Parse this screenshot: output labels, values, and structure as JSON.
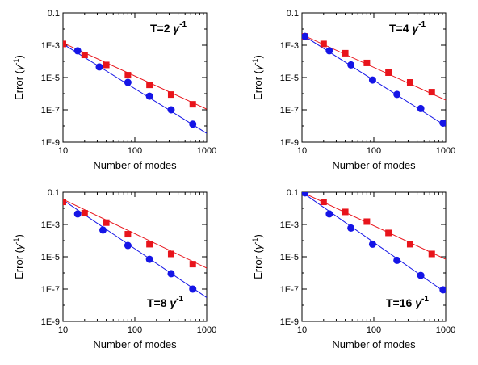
{
  "chart_data": [
    {
      "type": "scatter",
      "title": "",
      "label_main": "T=2 ",
      "label_gamma": "γ",
      "label_sup": "-1",
      "xlabel": "Number of modes",
      "ylabel_main": "Error (",
      "ylabel_gamma": "γ",
      "ylabel_sup": "-1",
      "ylabel_close": ")",
      "xscale": "log",
      "yscale": "log",
      "xlim": [
        10,
        1000
      ],
      "ylim": [
        1e-09,
        0.1
      ],
      "xticks": [
        "10",
        "100",
        "1000"
      ],
      "yticks": [
        "1E-9",
        "1E-7",
        "1E-5",
        "1E-3",
        "0.1"
      ],
      "label_position": "top-right",
      "series": [
        {
          "color": "#e8141b",
          "marker": "square",
          "x": [
            10,
            20,
            40,
            80,
            160,
            320,
            640
          ],
          "y": [
            0.0012,
            0.00025,
            6e-05,
            1.4e-05,
            3.5e-06,
            8.8e-07,
            2.2e-07
          ],
          "fit_line": [
            [
              8,
              0.0022
            ],
            [
              1000,
              1.1e-07
            ]
          ]
        },
        {
          "color": "#1515e6",
          "marker": "circle",
          "x": [
            16,
            32,
            80,
            160,
            320,
            640
          ],
          "y": [
            0.00045,
            4.5e-05,
            5e-06,
            7e-07,
            1e-07,
            1.3e-08
          ],
          "fit_line": [
            [
              8,
              0.0022
            ],
            [
              1000,
              3.5e-09
            ]
          ]
        }
      ]
    },
    {
      "type": "scatter",
      "title": "",
      "label_main": "T=4 ",
      "label_gamma": "γ",
      "label_sup": "-1",
      "xlabel": "Number of modes",
      "ylabel_main": "Error (",
      "ylabel_gamma": "γ",
      "ylabel_sup": "-1",
      "ylabel_close": ")",
      "xscale": "log",
      "yscale": "log",
      "xlim": [
        10,
        1000
      ],
      "ylim": [
        1e-09,
        0.1
      ],
      "xticks": [
        "10",
        "100",
        "1000"
      ],
      "yticks": [
        "1E-9",
        "1E-7",
        "1E-5",
        "1E-3",
        "0.1"
      ],
      "label_position": "top-right",
      "series": [
        {
          "color": "#e8141b",
          "marker": "square",
          "x": [
            11,
            20,
            40,
            80,
            160,
            320,
            640
          ],
          "y": [
            0.0035,
            0.0012,
            0.00032,
            8e-05,
            2e-05,
            5e-06,
            1.25e-06
          ],
          "fit_line": [
            [
              10,
              0.0045
            ],
            [
              1000,
              4e-07
            ]
          ]
        },
        {
          "color": "#1515e6",
          "marker": "circle",
          "x": [
            11,
            24,
            48,
            96,
            210,
            450,
            920
          ],
          "y": [
            0.0035,
            0.00045,
            6e-05,
            7e-06,
            9e-07,
            1.2e-07,
            1.5e-08
          ],
          "fit_line": [
            [
              10,
              0.0045
            ],
            [
              1000,
              1e-08
            ]
          ]
        }
      ]
    },
    {
      "type": "scatter",
      "title": "",
      "label_main": "T=8 ",
      "label_gamma": "γ",
      "label_sup": "-1",
      "xlabel": "Number of modes",
      "ylabel_main": "Error (",
      "ylabel_gamma": "γ",
      "ylabel_sup": "-1",
      "ylabel_close": ")",
      "xscale": "log",
      "yscale": "log",
      "xlim": [
        10,
        1000
      ],
      "ylim": [
        1e-09,
        0.1
      ],
      "xticks": [
        "10",
        "100",
        "1000"
      ],
      "yticks": [
        "1E-9",
        "1E-7",
        "1E-5",
        "1E-3",
        "0.1"
      ],
      "label_position": "bottom-right",
      "series": [
        {
          "color": "#e8141b",
          "marker": "square",
          "x": [
            10,
            20,
            40,
            80,
            160,
            320,
            640
          ],
          "y": [
            0.025,
            0.005,
            0.0013,
            0.00025,
            6e-05,
            1.5e-05,
            3.5e-06
          ],
          "fit_line": [
            [
              9,
              0.045
            ],
            [
              1000,
              2e-06
            ]
          ]
        },
        {
          "color": "#1515e6",
          "marker": "circle",
          "x": [
            16,
            36,
            80,
            160,
            320,
            640
          ],
          "y": [
            0.0045,
            0.00045,
            5e-05,
            7e-06,
            9e-07,
            1e-07
          ],
          "fit_line": [
            [
              9,
              0.045
            ],
            [
              1000,
              3e-08
            ]
          ]
        }
      ]
    },
    {
      "type": "scatter",
      "title": "",
      "label_main": "T=16 ",
      "label_gamma": "γ",
      "label_sup": "-1",
      "xlabel": "Number of modes",
      "ylabel_main": "Error (",
      "ylabel_gamma": "γ",
      "ylabel_sup": "-1",
      "ylabel_close": ")",
      "xscale": "log",
      "yscale": "log",
      "xlim": [
        10,
        1000
      ],
      "ylim": [
        1e-09,
        0.1
      ],
      "xticks": [
        "10",
        "100",
        "1000"
      ],
      "yticks": [
        "1E-9",
        "1E-7",
        "1E-5",
        "1E-3",
        "0.1"
      ],
      "label_position": "bottom-right",
      "series": [
        {
          "color": "#e8141b",
          "marker": "square",
          "x": [
            20,
            40,
            80,
            160,
            320,
            640
          ],
          "y": [
            0.025,
            0.006,
            0.0015,
            0.0003,
            6e-05,
            1.5e-05
          ],
          "fit_line": [
            [
              10,
              0.1
            ],
            [
              1000,
              7e-06
            ]
          ]
        },
        {
          "color": "#1515e6",
          "marker": "circle",
          "x": [
            11,
            24,
            48,
            96,
            210,
            450,
            920
          ],
          "y": [
            0.09,
            0.0045,
            0.0006,
            6e-05,
            6e-06,
            7e-07,
            9e-08
          ],
          "fit_line": [
            [
              10,
              0.1
            ],
            [
              1000,
              6e-08
            ]
          ]
        }
      ]
    }
  ]
}
